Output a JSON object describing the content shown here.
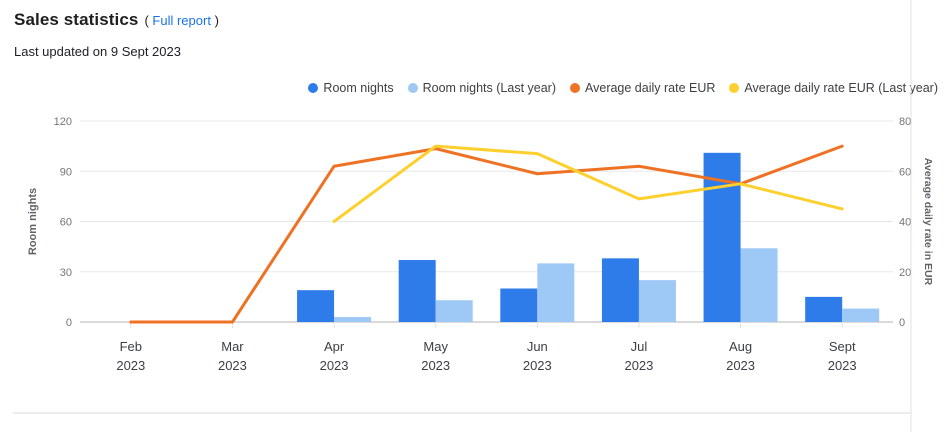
{
  "header": {
    "title": "Sales statistics",
    "paren_open": "(",
    "link_label": "Full report",
    "paren_close": ")",
    "subtitle": "Last updated on 9 Sept 2023"
  },
  "colors": {
    "room_nights": "#2d7ce9",
    "room_nights_last_year": "#9ec8f6",
    "adr": "#ef7224",
    "adr_last_year": "#fdd02e",
    "link": "#1a73e8",
    "gridline": "#e8e8e8",
    "baseline": "#cdcdcd",
    "border": "#e0e0e0",
    "tick_text": "#757575",
    "axis_label_text": "#5f6368",
    "category_text": "#3c4043"
  },
  "chart_data": {
    "type": "bar",
    "subtype": "grouped bars + overlaid lines (dual axis combo)",
    "categories": [
      "Feb 2023",
      "Mar 2023",
      "Apr 2023",
      "May 2023",
      "Jun 2023",
      "Jul 2023",
      "Aug 2023",
      "Sept 2023"
    ],
    "series": [
      {
        "name": "Room nights",
        "type": "bar",
        "axis": "left",
        "color": "#2d7ce9",
        "values": [
          0,
          0,
          19,
          37,
          20,
          38,
          101,
          15
        ]
      },
      {
        "name": "Room nights (Last year)",
        "type": "bar",
        "axis": "left",
        "color": "#9ec8f6",
        "values": [
          0,
          0,
          3,
          13,
          35,
          25,
          44,
          8
        ]
      },
      {
        "name": "Average daily rate EUR",
        "type": "line",
        "axis": "right",
        "color": "#ef7224",
        "values": [
          0,
          0,
          62,
          69,
          59,
          62,
          55,
          70
        ]
      },
      {
        "name": "Average daily rate EUR (Last year)",
        "type": "line",
        "axis": "right",
        "color": "#fdd02e",
        "values": [
          null,
          null,
          40,
          70,
          67,
          49,
          55,
          45
        ]
      }
    ],
    "left_axis": {
      "label": "Room nights",
      "min": 0,
      "max": 120,
      "ticks": [
        0,
        30,
        60,
        90,
        120
      ]
    },
    "right_axis": {
      "label": "Average daily rate in EUR",
      "min": 0,
      "max": 80,
      "ticks": [
        0,
        20,
        40,
        60,
        80
      ]
    },
    "grid": true,
    "legend_position": "top-right"
  }
}
